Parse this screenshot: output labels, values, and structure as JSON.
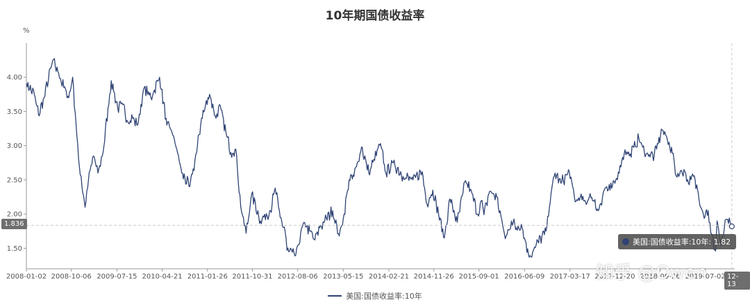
{
  "chart_data": {
    "type": "line",
    "title": "10年期国债收益率",
    "ylabel": "%",
    "ylim": [
      1.2,
      4.5
    ],
    "yticks": [
      "1.50",
      "2.00",
      "2.50",
      "3.00",
      "3.50",
      "4.00"
    ],
    "xticks": [
      "2008-01-02",
      "2008-10-06",
      "2009-07-15",
      "2010-04-21",
      "2011-01-26",
      "2011-10-31",
      "2012-08-06",
      "2013-05-15",
      "2014-02-21",
      "2014-11-26",
      "2015-09-01",
      "2016-06-09",
      "2017-03-17",
      "2017-12-20",
      "2018-09-26",
      "2019-07-02"
    ],
    "grid": false,
    "legend_position": "bottom-center",
    "series": [
      {
        "name": "美国:国债收益率:10年",
        "color": "#2f4374",
        "values": [
          [
            "2008-01-02",
            3.91
          ],
          [
            "2008-02-20",
            3.75
          ],
          [
            "2008-03-17",
            3.45
          ],
          [
            "2008-04-20",
            3.7
          ],
          [
            "2008-06-13",
            4.25
          ],
          [
            "2008-07-20",
            4.05
          ],
          [
            "2008-08-20",
            3.85
          ],
          [
            "2008-09-20",
            3.7
          ],
          [
            "2008-10-14",
            4.0
          ],
          [
            "2008-11-20",
            2.8
          ],
          [
            "2008-12-30",
            2.1
          ],
          [
            "2009-01-20",
            2.5
          ],
          [
            "2009-02-20",
            2.85
          ],
          [
            "2009-03-20",
            2.6
          ],
          [
            "2009-04-20",
            2.9
          ],
          [
            "2009-06-10",
            3.95
          ],
          [
            "2009-07-20",
            3.55
          ],
          [
            "2009-08-20",
            3.6
          ],
          [
            "2009-09-20",
            3.35
          ],
          [
            "2009-10-20",
            3.4
          ],
          [
            "2009-11-20",
            3.3
          ],
          [
            "2009-12-31",
            3.85
          ],
          [
            "2010-02-10",
            3.7
          ],
          [
            "2010-04-05",
            4.0
          ],
          [
            "2010-05-20",
            3.3
          ],
          [
            "2010-06-20",
            3.2
          ],
          [
            "2010-07-20",
            2.95
          ],
          [
            "2010-08-20",
            2.6
          ],
          [
            "2010-10-08",
            2.4
          ],
          [
            "2010-11-20",
            2.9
          ],
          [
            "2010-12-20",
            3.4
          ],
          [
            "2011-02-08",
            3.75
          ],
          [
            "2011-03-20",
            3.4
          ],
          [
            "2011-04-10",
            3.6
          ],
          [
            "2011-05-20",
            3.2
          ],
          [
            "2011-06-20",
            2.9
          ],
          [
            "2011-07-20",
            2.95
          ],
          [
            "2011-08-20",
            2.1
          ],
          [
            "2011-09-22",
            1.72
          ],
          [
            "2011-10-27",
            2.3
          ],
          [
            "2011-12-20",
            1.9
          ],
          [
            "2012-02-20",
            2.05
          ],
          [
            "2012-03-20",
            2.38
          ],
          [
            "2012-04-20",
            1.95
          ],
          [
            "2012-05-20",
            1.75
          ],
          [
            "2012-06-01",
            1.47
          ],
          [
            "2012-07-25",
            1.4
          ],
          [
            "2012-09-14",
            1.88
          ],
          [
            "2012-10-20",
            1.75
          ],
          [
            "2012-11-20",
            1.62
          ],
          [
            "2012-12-20",
            1.8
          ],
          [
            "2013-01-20",
            1.9
          ],
          [
            "2013-03-10",
            2.05
          ],
          [
            "2013-04-20",
            1.68
          ],
          [
            "2013-05-20",
            2.0
          ],
          [
            "2013-06-20",
            2.5
          ],
          [
            "2013-07-20",
            2.55
          ],
          [
            "2013-09-05",
            2.98
          ],
          [
            "2013-10-20",
            2.6
          ],
          [
            "2013-12-31",
            3.03
          ],
          [
            "2014-02-03",
            2.6
          ],
          [
            "2014-03-20",
            2.75
          ],
          [
            "2014-05-20",
            2.55
          ],
          [
            "2014-07-20",
            2.5
          ],
          [
            "2014-09-15",
            2.62
          ],
          [
            "2014-10-15",
            2.15
          ],
          [
            "2014-11-20",
            2.35
          ],
          [
            "2015-01-30",
            1.65
          ],
          [
            "2015-03-06",
            2.22
          ],
          [
            "2015-04-20",
            1.88
          ],
          [
            "2015-06-10",
            2.49
          ],
          [
            "2015-07-20",
            2.3
          ],
          [
            "2015-08-24",
            2.0
          ],
          [
            "2015-09-20",
            2.2
          ],
          [
            "2015-10-02",
            1.99
          ],
          [
            "2015-11-06",
            2.33
          ],
          [
            "2015-12-20",
            2.25
          ],
          [
            "2016-02-11",
            1.64
          ],
          [
            "2016-03-20",
            1.9
          ],
          [
            "2016-04-20",
            1.8
          ],
          [
            "2016-05-20",
            1.85
          ],
          [
            "2016-07-08",
            1.37
          ],
          [
            "2016-08-20",
            1.55
          ],
          [
            "2016-10-20",
            1.75
          ],
          [
            "2016-11-20",
            2.3
          ],
          [
            "2016-12-15",
            2.6
          ],
          [
            "2017-01-20",
            2.45
          ],
          [
            "2017-03-13",
            2.62
          ],
          [
            "2017-04-18",
            2.18
          ],
          [
            "2017-05-20",
            2.25
          ],
          [
            "2017-06-26",
            2.14
          ],
          [
            "2017-07-20",
            2.3
          ],
          [
            "2017-09-07",
            2.05
          ],
          [
            "2017-10-20",
            2.38
          ],
          [
            "2017-11-20",
            2.35
          ],
          [
            "2017-12-20",
            2.45
          ],
          [
            "2018-02-21",
            2.94
          ],
          [
            "2018-03-20",
            2.85
          ],
          [
            "2018-05-17",
            3.11
          ],
          [
            "2018-06-20",
            2.9
          ],
          [
            "2018-08-20",
            2.85
          ],
          [
            "2018-10-08",
            3.23
          ],
          [
            "2018-11-20",
            3.05
          ],
          [
            "2018-12-20",
            2.8
          ],
          [
            "2019-01-03",
            2.56
          ],
          [
            "2019-02-20",
            2.65
          ],
          [
            "2019-03-20",
            2.45
          ],
          [
            "2019-04-20",
            2.55
          ],
          [
            "2019-05-20",
            2.3
          ],
          [
            "2019-06-20",
            2.0
          ],
          [
            "2019-07-20",
            2.05
          ],
          [
            "2019-08-05",
            1.73
          ],
          [
            "2019-09-04",
            1.46
          ],
          [
            "2019-09-13",
            1.9
          ],
          [
            "2019-10-08",
            1.53
          ],
          [
            "2019-11-07",
            1.92
          ],
          [
            "2019-12-13",
            1.82
          ]
        ]
      }
    ]
  },
  "cursor": {
    "y_value_label": "1.836",
    "x_value_label": "12-13",
    "tooltip_text": "美国:国债收益率:10年: 1.82"
  },
  "watermark": "知乎 @Owen"
}
